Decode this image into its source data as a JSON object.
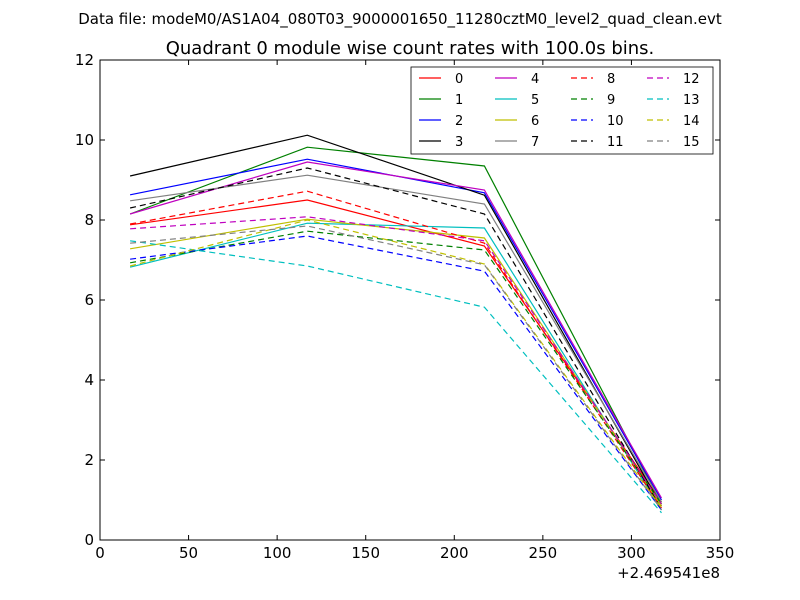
{
  "chart_data": {
    "type": "line",
    "suptitle": "Data file: modeM0/AS1A04_080T03_9000001650_11280cztM0_level2_quad_clean.evt",
    "title": "Quadrant 0 module wise count rates with 100.0s bins.",
    "xlabel": "",
    "ylabel": "",
    "x_offset_label": "+2.469541e8",
    "xlim": [
      0,
      350
    ],
    "ylim": [
      0,
      12
    ],
    "x_ticks": [
      0,
      50,
      100,
      150,
      200,
      250,
      300,
      350
    ],
    "y_ticks": [
      0,
      2,
      4,
      6,
      8,
      10,
      12
    ],
    "x": [
      17,
      117,
      217,
      317
    ],
    "grid": false,
    "legend_position": "top-right",
    "legend_columns": 4,
    "series": [
      {
        "name": "0",
        "color": "#ff0000",
        "style": "solid",
        "values": [
          7.88,
          8.5,
          7.35,
          0.95
        ]
      },
      {
        "name": "1",
        "color": "#008000",
        "style": "solid",
        "values": [
          8.15,
          9.82,
          9.35,
          0.9
        ]
      },
      {
        "name": "2",
        "color": "#0000ff",
        "style": "solid",
        "values": [
          8.63,
          9.52,
          8.68,
          1.0
        ]
      },
      {
        "name": "3",
        "color": "#000000",
        "style": "solid",
        "values": [
          9.1,
          10.12,
          8.62,
          0.85
        ]
      },
      {
        "name": "4",
        "color": "#bf00bf",
        "style": "solid",
        "values": [
          8.15,
          9.45,
          8.75,
          1.05
        ]
      },
      {
        "name": "5",
        "color": "#00bfbf",
        "style": "solid",
        "values": [
          6.82,
          7.92,
          7.8,
          0.75
        ]
      },
      {
        "name": "6",
        "color": "#bfbf00",
        "style": "solid",
        "values": [
          7.28,
          8.02,
          7.55,
          0.85
        ]
      },
      {
        "name": "7",
        "color": "#808080",
        "style": "solid",
        "values": [
          8.48,
          9.12,
          8.4,
          0.95
        ]
      },
      {
        "name": "8",
        "color": "#ff0000",
        "style": "dashed",
        "values": [
          7.9,
          8.72,
          7.42,
          0.8
        ]
      },
      {
        "name": "9",
        "color": "#008000",
        "style": "dashed",
        "values": [
          6.93,
          7.72,
          7.25,
          0.9
        ]
      },
      {
        "name": "10",
        "color": "#0000ff",
        "style": "dashed",
        "values": [
          7.02,
          7.6,
          6.72,
          0.75
        ]
      },
      {
        "name": "11",
        "color": "#000000",
        "style": "dashed",
        "values": [
          8.3,
          9.3,
          8.15,
          0.78
        ]
      },
      {
        "name": "12",
        "color": "#bf00bf",
        "style": "dashed",
        "values": [
          7.78,
          8.08,
          7.48,
          0.9
        ]
      },
      {
        "name": "13",
        "color": "#00bfbf",
        "style": "dashed",
        "values": [
          7.48,
          6.85,
          5.82,
          0.68
        ]
      },
      {
        "name": "14",
        "color": "#bfbf00",
        "style": "dashed",
        "values": [
          6.85,
          8.0,
          6.9,
          0.8
        ]
      },
      {
        "name": "15",
        "color": "#808080",
        "style": "dashed",
        "values": [
          7.42,
          7.85,
          6.88,
          0.75
        ]
      }
    ]
  }
}
